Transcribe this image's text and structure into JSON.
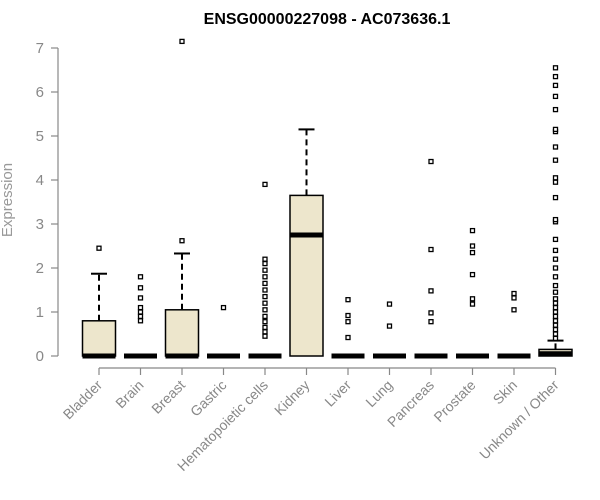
{
  "chart_data": {
    "type": "boxplot",
    "title": "ENSG00000227098 - AC073636.1",
    "ylabel": "Expression",
    "xlabel": "",
    "ylim": [
      0,
      7
    ],
    "yticks": [
      0,
      1,
      2,
      3,
      4,
      5,
      6,
      7
    ],
    "colors": {
      "box_fill": "#ede6cc",
      "stroke": "#000000",
      "axis": "#888888"
    },
    "categories": [
      "Bladder",
      "Brain",
      "Breast",
      "Gastric",
      "Hematopoietic cells",
      "Kidney",
      "Liver",
      "Lung",
      "Pancreas",
      "Prostate",
      "Skin",
      "Unknown / Other"
    ],
    "boxes": [
      {
        "category": "Bladder",
        "q1": 0,
        "median": 0,
        "q3": 0.8,
        "whisker_low": 0,
        "whisker_high": 1.87,
        "outliers": [
          2.45
        ]
      },
      {
        "category": "Brain",
        "q1": 0,
        "median": 0,
        "q3": 0,
        "whisker_low": 0,
        "whisker_high": 0,
        "outliers": [
          0.8,
          0.9,
          1.0,
          1.1,
          1.32,
          1.55,
          1.8
        ]
      },
      {
        "category": "Breast",
        "q1": 0,
        "median": 0,
        "q3": 1.05,
        "whisker_low": 0,
        "whisker_high": 2.33,
        "outliers": [
          2.62,
          7.15
        ]
      },
      {
        "category": "Gastric",
        "q1": 0,
        "median": 0,
        "q3": 0,
        "whisker_low": 0,
        "whisker_high": 0,
        "outliers": [
          1.1
        ]
      },
      {
        "category": "Hematopoietic cells",
        "q1": 0,
        "median": 0,
        "q3": 0,
        "whisker_low": 0,
        "whisker_high": 0,
        "outliers": [
          0.45,
          0.55,
          0.65,
          0.78,
          0.9,
          1.05,
          1.2,
          1.35,
          1.5,
          1.65,
          1.8,
          1.95,
          2.1,
          2.2,
          3.9
        ]
      },
      {
        "category": "Kidney",
        "q1": 0,
        "median": 2.75,
        "q3": 3.65,
        "whisker_low": 0,
        "whisker_high": 5.15,
        "outliers": []
      },
      {
        "category": "Liver",
        "q1": 0,
        "median": 0,
        "q3": 0,
        "whisker_low": 0,
        "whisker_high": 0,
        "outliers": [
          0.42,
          0.78,
          0.92,
          1.28
        ]
      },
      {
        "category": "Lung",
        "q1": 0,
        "median": 0,
        "q3": 0,
        "whisker_low": 0,
        "whisker_high": 0,
        "outliers": [
          0.68,
          1.18
        ]
      },
      {
        "category": "Pancreas",
        "q1": 0,
        "median": 0,
        "q3": 0,
        "whisker_low": 0,
        "whisker_high": 0,
        "outliers": [
          0.78,
          0.98,
          1.48,
          2.42,
          4.42
        ]
      },
      {
        "category": "Prostate",
        "q1": 0,
        "median": 0,
        "q3": 0,
        "whisker_low": 0,
        "whisker_high": 0,
        "outliers": [
          1.18,
          1.3,
          1.85,
          2.35,
          2.5,
          2.85
        ]
      },
      {
        "category": "Skin",
        "q1": 0,
        "median": 0,
        "q3": 0,
        "whisker_low": 0,
        "whisker_high": 0,
        "outliers": [
          1.05,
          1.32,
          1.42
        ]
      },
      {
        "category": "Unknown / Other",
        "q1": 0,
        "median": 0.05,
        "q3": 0.15,
        "whisker_low": 0,
        "whisker_high": 0.35,
        "outliers": [
          0.4,
          0.5,
          0.6,
          0.7,
          0.8,
          0.9,
          1.0,
          1.1,
          1.2,
          1.3,
          1.45,
          1.6,
          1.8,
          2.0,
          2.2,
          2.4,
          2.65,
          3.05,
          3.1,
          3.6,
          3.95,
          4.05,
          4.45,
          4.75,
          5.1,
          5.15,
          5.6,
          5.9,
          6.15,
          6.35,
          6.55
        ]
      }
    ]
  }
}
